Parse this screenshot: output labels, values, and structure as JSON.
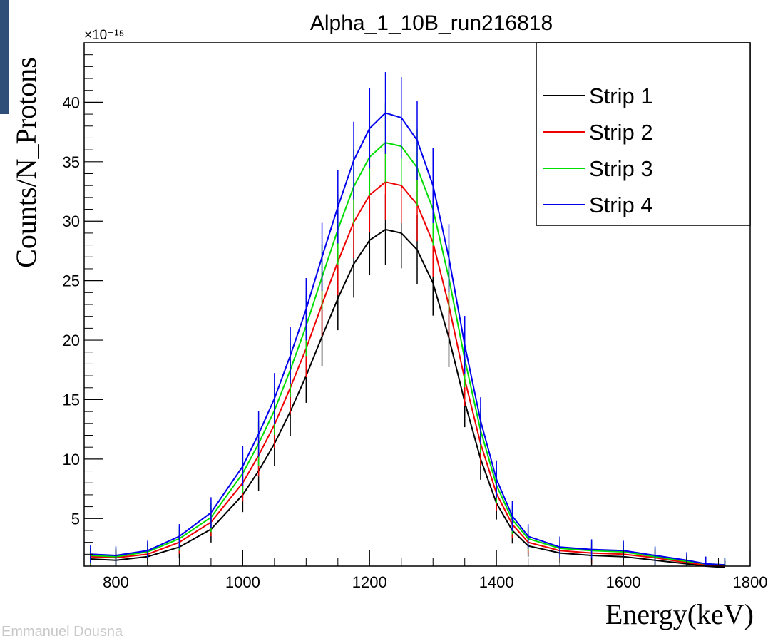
{
  "chart_data": {
    "type": "line",
    "title": "Alpha_1_10B_run216818",
    "xlabel": "Energy(keV)",
    "ylabel": "Counts/N_Protons",
    "y_multiplier": "×10⁻¹⁵",
    "xlim": [
      750,
      1800
    ],
    "ylim": [
      1,
      45
    ],
    "x_ticks": [
      800,
      1000,
      1200,
      1400,
      1600,
      1800
    ],
    "y_ticks": [
      5,
      10,
      15,
      20,
      25,
      30,
      35,
      40
    ],
    "grid": false,
    "legend_position": "top-right",
    "x": [
      760,
      800,
      850,
      900,
      950,
      1000,
      1025,
      1050,
      1075,
      1100,
      1125,
      1150,
      1175,
      1200,
      1225,
      1250,
      1275,
      1300,
      1325,
      1350,
      1375,
      1400,
      1425,
      1450,
      1500,
      1550,
      1600,
      1650,
      1700,
      1730,
      1760
    ],
    "series": [
      {
        "name": "Strip 1",
        "color": "#000000",
        "values": [
          1.6,
          1.5,
          1.8,
          2.6,
          4.1,
          7.0,
          9.0,
          11.3,
          14.0,
          17.0,
          20.3,
          23.5,
          26.4,
          28.4,
          29.3,
          29.0,
          27.6,
          24.8,
          20.2,
          14.8,
          10.0,
          6.3,
          4.0,
          2.7,
          2.1,
          1.9,
          1.8,
          1.5,
          1.2,
          1.0,
          0.9
        ]
      },
      {
        "name": "Strip 2",
        "color": "#ee0000",
        "values": [
          1.8,
          1.7,
          2.0,
          3.0,
          4.7,
          8.0,
          10.3,
          12.9,
          16.0,
          19.3,
          23.0,
          26.6,
          29.9,
          32.2,
          33.3,
          33.0,
          31.4,
          28.2,
          22.9,
          16.7,
          11.3,
          7.1,
          4.5,
          3.0,
          2.3,
          2.1,
          2.0,
          1.7,
          1.3,
          1.1,
          1.0
        ]
      },
      {
        "name": "Strip 3",
        "color": "#00dd00",
        "values": [
          1.9,
          1.8,
          2.2,
          3.3,
          5.1,
          8.8,
          11.3,
          14.1,
          17.5,
          21.2,
          25.3,
          29.3,
          32.9,
          35.4,
          36.6,
          36.3,
          34.5,
          31.0,
          25.2,
          18.4,
          12.4,
          7.8,
          4.9,
          3.3,
          2.5,
          2.3,
          2.2,
          1.8,
          1.4,
          1.2,
          1.1
        ]
      },
      {
        "name": "Strip 4",
        "color": "#0000ee",
        "values": [
          2.0,
          1.9,
          2.3,
          3.5,
          5.5,
          9.4,
          12.1,
          15.1,
          18.7,
          22.6,
          27.0,
          31.2,
          35.1,
          37.8,
          39.1,
          38.7,
          36.8,
          33.0,
          26.9,
          19.6,
          13.2,
          8.3,
          5.2,
          3.5,
          2.6,
          2.4,
          2.3,
          1.9,
          1.5,
          1.2,
          1.1
        ]
      }
    ]
  },
  "footer_text": "Emmanuel Dousna"
}
